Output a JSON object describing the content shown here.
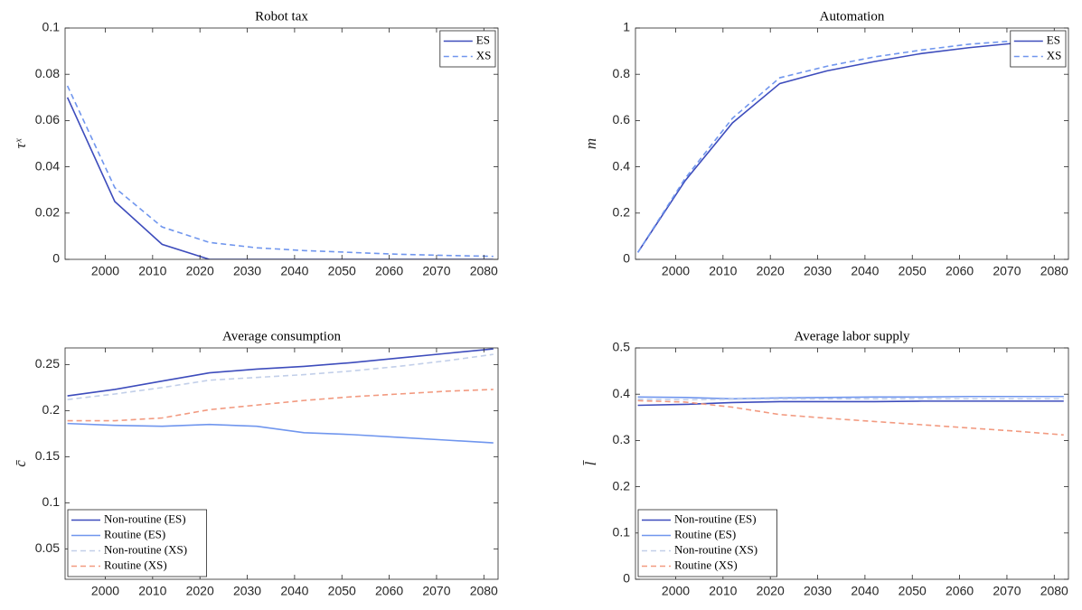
{
  "chart_data": [
    {
      "type": "line",
      "title": "Robot tax",
      "ylabel": "τˣ",
      "x": [
        1992,
        2002,
        2012,
        2022,
        2032,
        2042,
        2052,
        2062,
        2072,
        2082
      ],
      "xlim": [
        1991.5,
        2083
      ],
      "xticks": [
        2000,
        2010,
        2020,
        2030,
        2040,
        2050,
        2060,
        2070,
        2080
      ],
      "ylim": [
        0,
        0.1
      ],
      "yticks": [
        0,
        0.02,
        0.04,
        0.06,
        0.08,
        0.1
      ],
      "legend": "northeast",
      "series": [
        {
          "name": "ES",
          "color": "#3d4cbc",
          "style": "solid",
          "values": [
            0.07,
            0.025,
            0.0065,
            0,
            0,
            0,
            0,
            0,
            0,
            0
          ]
        },
        {
          "name": "XS",
          "color": "#7096ee",
          "style": "dashed",
          "values": [
            0.075,
            0.031,
            0.014,
            0.0073,
            0.005,
            0.0038,
            0.003,
            0.0022,
            0.0017,
            0.0013
          ]
        }
      ]
    },
    {
      "type": "line",
      "title": "Automation",
      "ylabel": "m",
      "x": [
        1992,
        2002,
        2012,
        2022,
        2032,
        2042,
        2052,
        2062,
        2072,
        2082
      ],
      "xlim": [
        1991.5,
        2083
      ],
      "xticks": [
        2000,
        2010,
        2020,
        2030,
        2040,
        2050,
        2060,
        2070,
        2080
      ],
      "ylim": [
        0,
        1
      ],
      "yticks": [
        0,
        0.2,
        0.4,
        0.6,
        0.8,
        1
      ],
      "legend": "northeast",
      "series": [
        {
          "name": "ES",
          "color": "#3d4cbc",
          "style": "solid",
          "values": [
            0.03,
            0.34,
            0.59,
            0.76,
            0.815,
            0.855,
            0.89,
            0.915,
            0.935,
            0.955
          ]
        },
        {
          "name": "XS",
          "color": "#7096ee",
          "style": "dashed",
          "values": [
            0.03,
            0.35,
            0.61,
            0.785,
            0.835,
            0.875,
            0.905,
            0.93,
            0.945,
            0.96
          ]
        }
      ]
    },
    {
      "type": "line",
      "title": "Average consumption",
      "ylabel": "c̄",
      "x": [
        1992,
        2002,
        2012,
        2022,
        2032,
        2042,
        2052,
        2062,
        2072,
        2082
      ],
      "xlim": [
        1991.5,
        2083
      ],
      "xticks": [
        2000,
        2010,
        2020,
        2030,
        2040,
        2050,
        2060,
        2070,
        2080
      ],
      "ylim": [
        0.017,
        0.268
      ],
      "yticks": [
        0.05,
        0.1,
        0.15,
        0.2,
        0.25
      ],
      "legend": "southwest",
      "series": [
        {
          "name": "Non-routine (ES)",
          "color": "#3d4cbc",
          "style": "solid",
          "values": [
            0.216,
            0.223,
            0.232,
            0.241,
            0.245,
            0.248,
            0.252,
            0.257,
            0.262,
            0.267
          ]
        },
        {
          "name": "Routine (ES)",
          "color": "#7096ee",
          "style": "solid",
          "values": [
            0.186,
            0.184,
            0.183,
            0.185,
            0.183,
            0.176,
            0.174,
            0.171,
            0.168,
            0.165
          ]
        },
        {
          "name": "Non-routine (XS)",
          "color": "#c2cfe9",
          "style": "dashed",
          "values": [
            0.212,
            0.218,
            0.225,
            0.233,
            0.236,
            0.239,
            0.243,
            0.248,
            0.254,
            0.261
          ]
        },
        {
          "name": "Routine (XS)",
          "color": "#f29a80",
          "style": "dashed",
          "values": [
            0.189,
            0.189,
            0.192,
            0.201,
            0.206,
            0.211,
            0.215,
            0.218,
            0.221,
            0.223
          ]
        }
      ]
    },
    {
      "type": "line",
      "title": "Average labor supply",
      "ylabel": "l̄",
      "x": [
        1992,
        2002,
        2012,
        2022,
        2032,
        2042,
        2052,
        2062,
        2072,
        2082
      ],
      "xlim": [
        1991.5,
        2083
      ],
      "xticks": [
        2000,
        2010,
        2020,
        2030,
        2040,
        2050,
        2060,
        2070,
        2080
      ],
      "ylim": [
        0,
        0.5
      ],
      "yticks": [
        0,
        0.1,
        0.2,
        0.3,
        0.4,
        0.5
      ],
      "legend": "southwest",
      "series": [
        {
          "name": "Non-routine (ES)",
          "color": "#3d4cbc",
          "style": "solid",
          "values": [
            0.376,
            0.378,
            0.382,
            0.384,
            0.384,
            0.384,
            0.385,
            0.385,
            0.385,
            0.385
          ]
        },
        {
          "name": "Routine (ES)",
          "color": "#7096ee",
          "style": "solid",
          "values": [
            0.394,
            0.393,
            0.39,
            0.392,
            0.393,
            0.394,
            0.394,
            0.395,
            0.395,
            0.395
          ]
        },
        {
          "name": "Non-routine (XS)",
          "color": "#c2cfe9",
          "style": "dashed",
          "values": [
            0.389,
            0.388,
            0.389,
            0.39,
            0.39,
            0.39,
            0.39,
            0.39,
            0.39,
            0.39
          ]
        },
        {
          "name": "Routine (XS)",
          "color": "#f29a80",
          "style": "dashed",
          "values": [
            0.386,
            0.383,
            0.372,
            0.356,
            0.348,
            0.341,
            0.334,
            0.327,
            0.32,
            0.312
          ]
        }
      ]
    }
  ]
}
